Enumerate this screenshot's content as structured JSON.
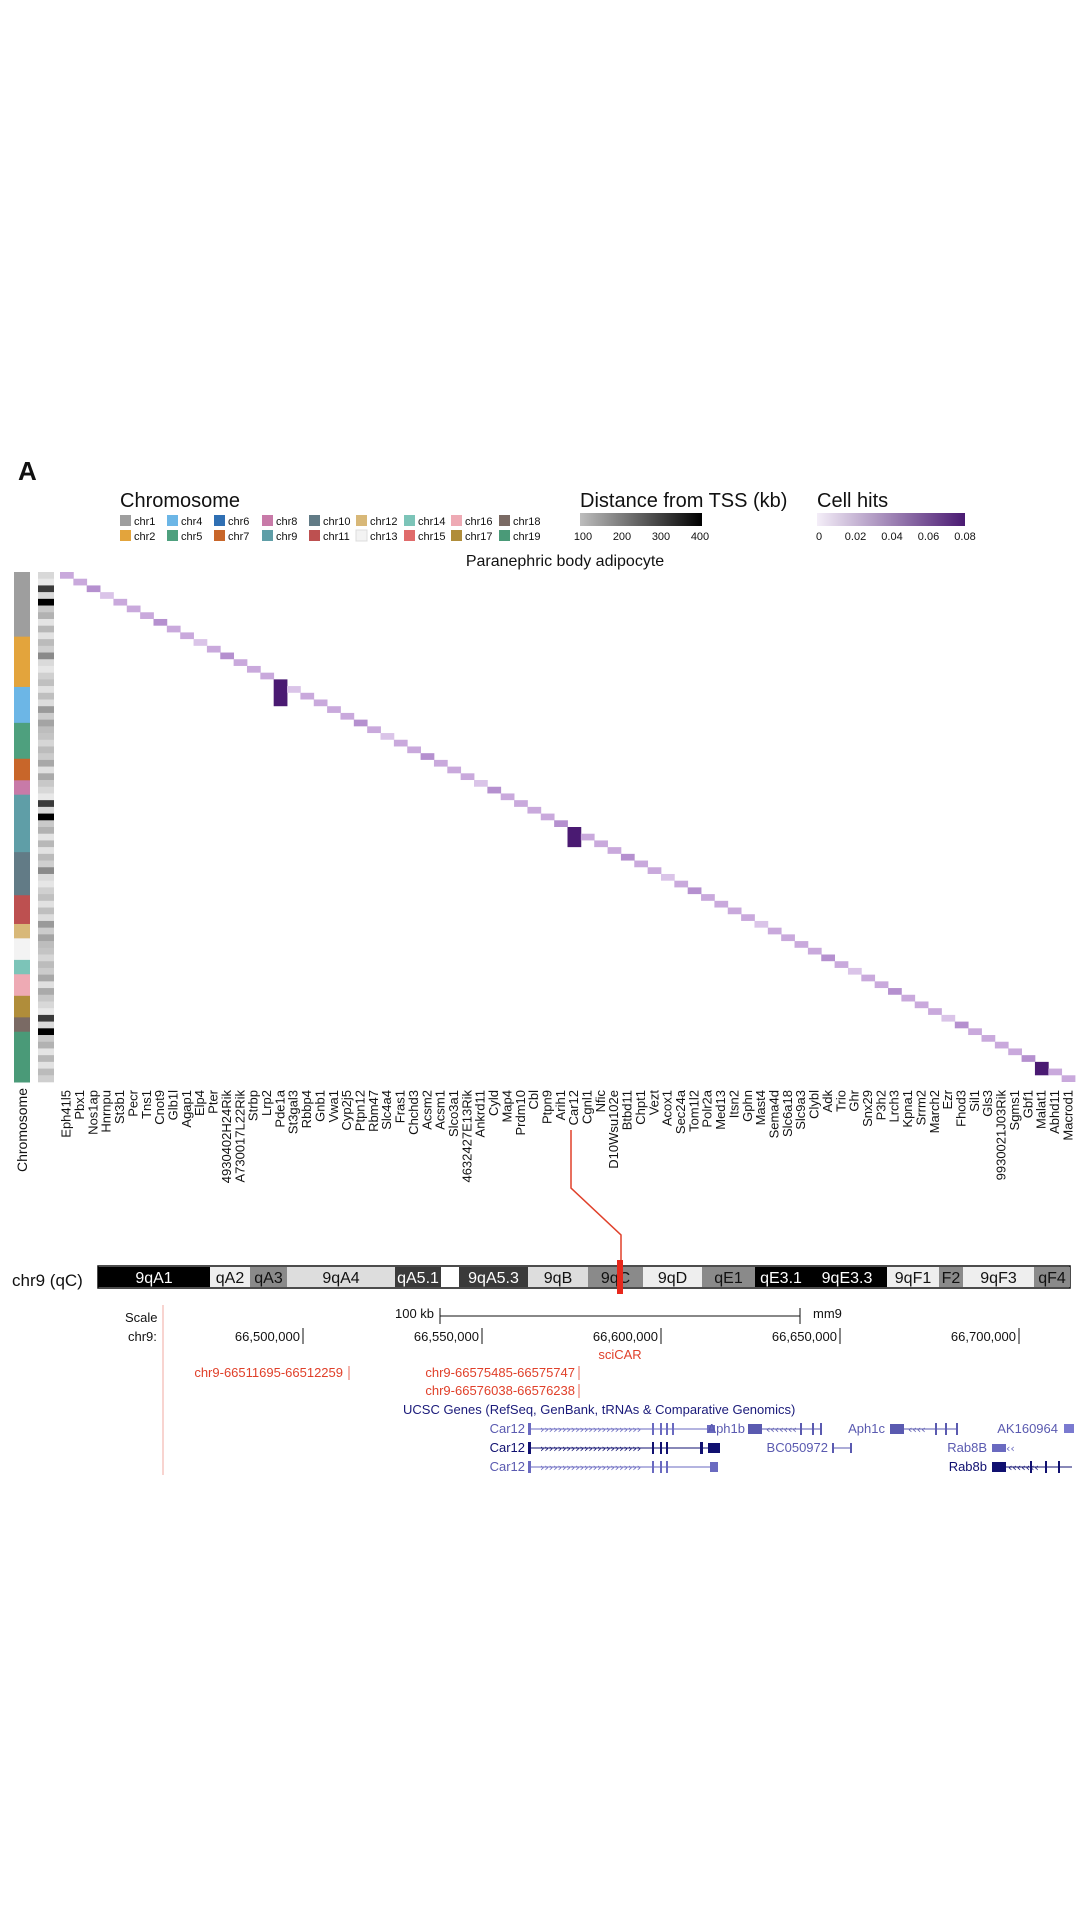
{
  "panel_label": "A",
  "legends": {
    "chromosome": {
      "title": "Chromosome",
      "items": [
        {
          "label": "chr1",
          "color": "#9e9e9e"
        },
        {
          "label": "chr2",
          "color": "#e3a43c"
        },
        {
          "label": "chr4",
          "color": "#6cb6e6"
        },
        {
          "label": "chr5",
          "color": "#4ea07e"
        },
        {
          "label": "chr6",
          "color": "#2f6fb3"
        },
        {
          "label": "chr7",
          "color": "#c8662a"
        },
        {
          "label": "chr8",
          "color": "#c87aa8"
        },
        {
          "label": "chr9",
          "color": "#5f9ea7"
        },
        {
          "label": "chr10",
          "color": "#627b86"
        },
        {
          "label": "chr11",
          "color": "#bd5050"
        },
        {
          "label": "chr12",
          "color": "#d8b878"
        },
        {
          "label": "chr13",
          "color": "#f3f3f3"
        },
        {
          "label": "chr14",
          "color": "#7cc4b8"
        },
        {
          "label": "chr15",
          "color": "#e06b6b"
        },
        {
          "label": "chr16",
          "color": "#eeaab4"
        },
        {
          "label": "chr17",
          "color": "#b08d3a"
        },
        {
          "label": "chr18",
          "color": "#7a6a64"
        },
        {
          "label": "chr19",
          "color": "#4a9a78"
        }
      ]
    },
    "distance": {
      "title": "Distance from TSS (kb)",
      "ticks": [
        "100",
        "200",
        "300",
        "400"
      ]
    },
    "cell_hits": {
      "title": "Cell hits",
      "ticks": [
        "0",
        "0.02",
        "0.04",
        "0.06",
        "0.08"
      ]
    }
  },
  "heatmap": {
    "title": "Paranephric body adipocyte",
    "row_axis_label": "Chromosome",
    "genes": [
      "Eph41l5",
      "Pbx1",
      "Nos1ap",
      "Hnrnpu",
      "St3b1",
      "Pecr",
      "Tns1",
      "Cnot9",
      "Glb1l",
      "Agap1",
      "Elp4",
      "Pter",
      "4930402H24Rik",
      "A730017L22Rik",
      "Strbp",
      "Lrp2",
      "Pde1a",
      "St3gal3",
      "Rbbp4",
      "Gnb1",
      "Vwa1",
      "Cyp2j5",
      "Ptpn12",
      "Rbm47",
      "Slc4a4",
      "Fras1",
      "Chchd3",
      "Acsm2",
      "Acsm1",
      "Slco3a1",
      "4632427E13Rik",
      "Ankrd11",
      "Cyld",
      "Map4",
      "Prdm10",
      "Cbl",
      "Ptpn9",
      "Arih1",
      "Car12",
      "Cgnl1",
      "Nfic",
      "D10Wsu102e",
      "Btbd11",
      "Chpt1",
      "Vezt",
      "Acox1",
      "Sec24a",
      "Tom1l2",
      "Polr2a",
      "Med13",
      "Itsn2",
      "Gphn",
      "Mast4",
      "Sema4d",
      "Slc6a18",
      "Slc9a3",
      "Clybl",
      "Adk",
      "Trio",
      "Ghr",
      "Snx29",
      "P3h2",
      "Lrch3",
      "Kpna1",
      "Srrm2",
      "March2",
      "Ezr",
      "Fhod3",
      "Sil1",
      "Gls3",
      "9930021J03Rik",
      "Sgms1",
      "Gbf1",
      "Malat1",
      "Abhd11",
      "Macrod1"
    ],
    "highlight_gene": "Car12"
  },
  "browser": {
    "chrom_label": "chr9 (qC)",
    "bands": [
      "9qA1",
      "qA2",
      "qA3",
      "9qA4",
      "qA5.1",
      "",
      "9qA5.3",
      "9qB",
      "9qC",
      "9qD",
      "qE1",
      "qE3.1",
      "9qE3.3",
      "9qF1",
      "F2",
      "9qF3",
      "qF4"
    ],
    "scale_label": "Scale",
    "scale_value": "100 kb",
    "assembly": "mm9",
    "chr_label": "chr9:",
    "positions": [
      "66,500,000",
      "66,550,000",
      "66,600,000",
      "66,650,000",
      "66,700,000"
    ],
    "sciCAR_label": "sciCAR",
    "peaks": [
      "chr9-66511695-66512259",
      "chr9-66575485-66575747",
      "chr9-66576038-66576238"
    ],
    "track_title": "UCSC Genes (RefSeq, GenBank, tRNAs & Comparative Genomics)",
    "gene_labels": [
      "Car12",
      "Car12",
      "Car12",
      "Aph1b",
      "BC050972",
      "Aph1c",
      "Rab8B",
      "Rab8b",
      "AK160964"
    ]
  }
}
